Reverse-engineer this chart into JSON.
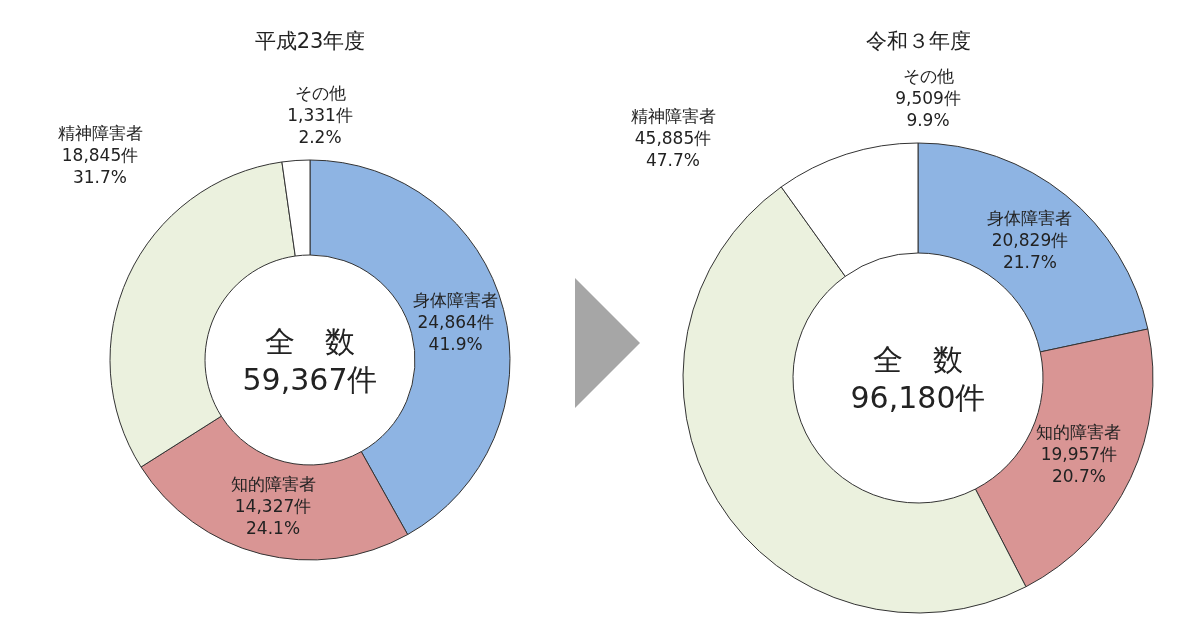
{
  "chart_data": [
    {
      "type": "donut",
      "title": "平成23年度",
      "categories": [
        "身体障害者",
        "知的障害者",
        "精神障害者",
        "その他"
      ],
      "values": [
        24864,
        14327,
        18845,
        1331
      ],
      "colors": [
        "#8eb4e3",
        "#d99594",
        "#ebf1de",
        "#ffffff"
      ],
      "value_labels": [
        "24,864件\n41.9%",
        "14,327件\n24.1%",
        "18,845件\n31.7%",
        "1,331件\n2.2%"
      ],
      "annotations": [
        "全　数",
        "59,367件"
      ]
    },
    {
      "type": "donut",
      "title": "令和３年度",
      "categories": [
        "身体障害者",
        "知的障害者",
        "精神障害者",
        "その他"
      ],
      "values": [
        20829,
        19957,
        45885,
        9509
      ],
      "colors": [
        "#8eb4e3",
        "#d99594",
        "#ebf1de",
        "#ffffff"
      ],
      "value_labels": [
        "20,829件\n21.7%",
        "19,957件\n20.7%",
        "45,885件\n47.7%",
        "9,509件\n9.9%"
      ],
      "annotations": [
        "全　数",
        "96,180件"
      ]
    }
  ]
}
